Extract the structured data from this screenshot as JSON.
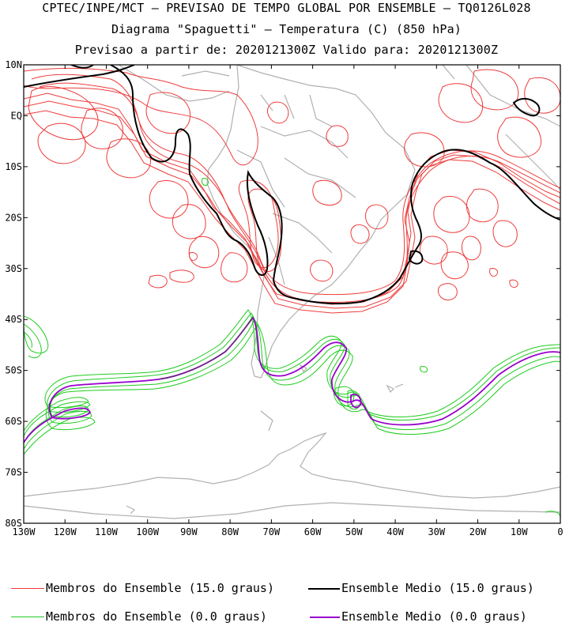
{
  "header": {
    "line1": "CPTEC/INPE/MCT — PREVISAO DE TEMPO GLOBAL POR ENSEMBLE — TQ0126L028",
    "line2": "Diagrama \"Spaguetti\" — Temperatura (C) (850 hPa)",
    "line3": "Previsao a partir de: 2020121300Z  Valido para: 2020121300Z"
  },
  "axes": {
    "lat_labels": [
      "10N",
      "EQ",
      "10S",
      "20S",
      "30S",
      "40S",
      "50S",
      "60S",
      "70S",
      "80S"
    ],
    "lon_labels": [
      "130W",
      "120W",
      "110W",
      "100W",
      "90W",
      "80W",
      "70W",
      "60W",
      "50W",
      "40W",
      "30W",
      "20W",
      "10W",
      "0"
    ]
  },
  "legend": {
    "members_15": "Membros do Ensemble (15.0 graus)",
    "mean_15": "Ensemble Medio (15.0 graus)",
    "members_0": "Membros do Ensemble (0.0 graus)",
    "mean_0": "Ensemble Medio (0.0 graus)"
  },
  "colors": {
    "members_15": "#ee3b3b",
    "mean_15": "#000000",
    "members_0": "#1fcc1f",
    "mean_0": "#9900cc",
    "coast": "#b0b0b0"
  }
}
